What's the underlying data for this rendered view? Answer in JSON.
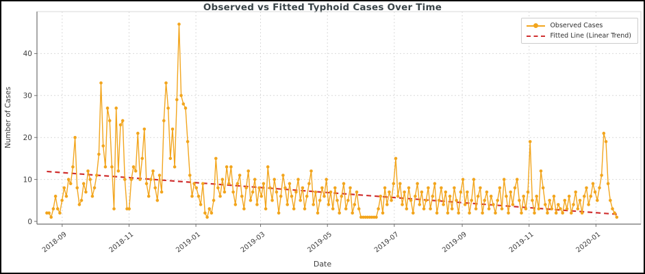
{
  "window": {
    "background": "#ffffff",
    "border_color": "#000000"
  },
  "chart_data": {
    "type": "line",
    "title": "Observed vs Fitted Typhoid Cases Over Time",
    "xlabel": "Date",
    "ylabel": "Number of Cases",
    "grid": true,
    "legend_position": "upper right",
    "x_tick_labels": [
      "2018-09",
      "2018-11",
      "2019-01",
      "2019-03",
      "2019-05",
      "2019-07",
      "2019-09",
      "2019-11",
      "2020-01"
    ],
    "y_ticks": [
      0,
      10,
      20,
      30,
      40
    ],
    "x_domain": [
      "2018-08-09",
      "2020-02-11"
    ],
    "y_domain": [
      -0.65,
      50
    ],
    "colors": {
      "observed": "#F2A51D",
      "fitted": "#CF2D2D",
      "grid": "#d9d9d9",
      "axis": "#6e6e6e",
      "frame": "#d8d8d8",
      "tick_text": "#3c3c3c"
    },
    "series": [
      {
        "name": "Observed Cases",
        "style": "line+markers",
        "color": "#F2A51D",
        "start_date": "2018-08-18",
        "end_date": "2020-01-20",
        "values": [
          2,
          2,
          1,
          3,
          6,
          3,
          2,
          5,
          8,
          6,
          10,
          9,
          13,
          20,
          8,
          4,
          5,
          9,
          7,
          12,
          10,
          6,
          8,
          11,
          16,
          33,
          18,
          13,
          27,
          24,
          13,
          3,
          27,
          12,
          23,
          24,
          10,
          3,
          3,
          10,
          13,
          12,
          21,
          10,
          15,
          22,
          9,
          6,
          10,
          12,
          8,
          5,
          11,
          7,
          24,
          33,
          27,
          15,
          22,
          13,
          29,
          47,
          30,
          28,
          27,
          19,
          11,
          6,
          9,
          8,
          6,
          4,
          9,
          2,
          1,
          3,
          2,
          5,
          15,
          8,
          6,
          10,
          7,
          13,
          9,
          13,
          7,
          4,
          9,
          11,
          6,
          3,
          8,
          12,
          5,
          7,
          10,
          4,
          8,
          6,
          9,
          3,
          13,
          8,
          5,
          10,
          7,
          2,
          6,
          11,
          8,
          4,
          9,
          6,
          3,
          7,
          10,
          5,
          8,
          3,
          6,
          9,
          12,
          4,
          7,
          2,
          5,
          8,
          6,
          10,
          4,
          7,
          3,
          8,
          5,
          2,
          6,
          9,
          3,
          5,
          8,
          2,
          4,
          7,
          3,
          1,
          1,
          1,
          1,
          1,
          1,
          1,
          1,
          3,
          6,
          2,
          8,
          4,
          7,
          5,
          9,
          15,
          6,
          9,
          4,
          7,
          3,
          8,
          5,
          2,
          6,
          9,
          4,
          7,
          3,
          5,
          8,
          3,
          6,
          9,
          2,
          5,
          8,
          4,
          7,
          2,
          6,
          3,
          8,
          5,
          2,
          7,
          10,
          4,
          7,
          2,
          5,
          10,
          3,
          6,
          8,
          2,
          5,
          7,
          3,
          6,
          4,
          2,
          5,
          8,
          3,
          10,
          6,
          2,
          7,
          4,
          8,
          10,
          5,
          2,
          6,
          3,
          7,
          19,
          5,
          2,
          6,
          3,
          12,
          8,
          4,
          2,
          5,
          3,
          6,
          2,
          4,
          3,
          2,
          5,
          3,
          6,
          2,
          4,
          7,
          3,
          5,
          2,
          6,
          8,
          4,
          6,
          9,
          7,
          5,
          8,
          11,
          21,
          19,
          9,
          5,
          3,
          2,
          1
        ]
      },
      {
        "name": "Fitted Line (Linear Trend)",
        "style": "dashed-line",
        "color": "#CF2D2D",
        "points": [
          {
            "date": "2018-08-18",
            "value": 11.9
          },
          {
            "date": "2020-01-20",
            "value": 1.7
          }
        ]
      }
    ]
  }
}
